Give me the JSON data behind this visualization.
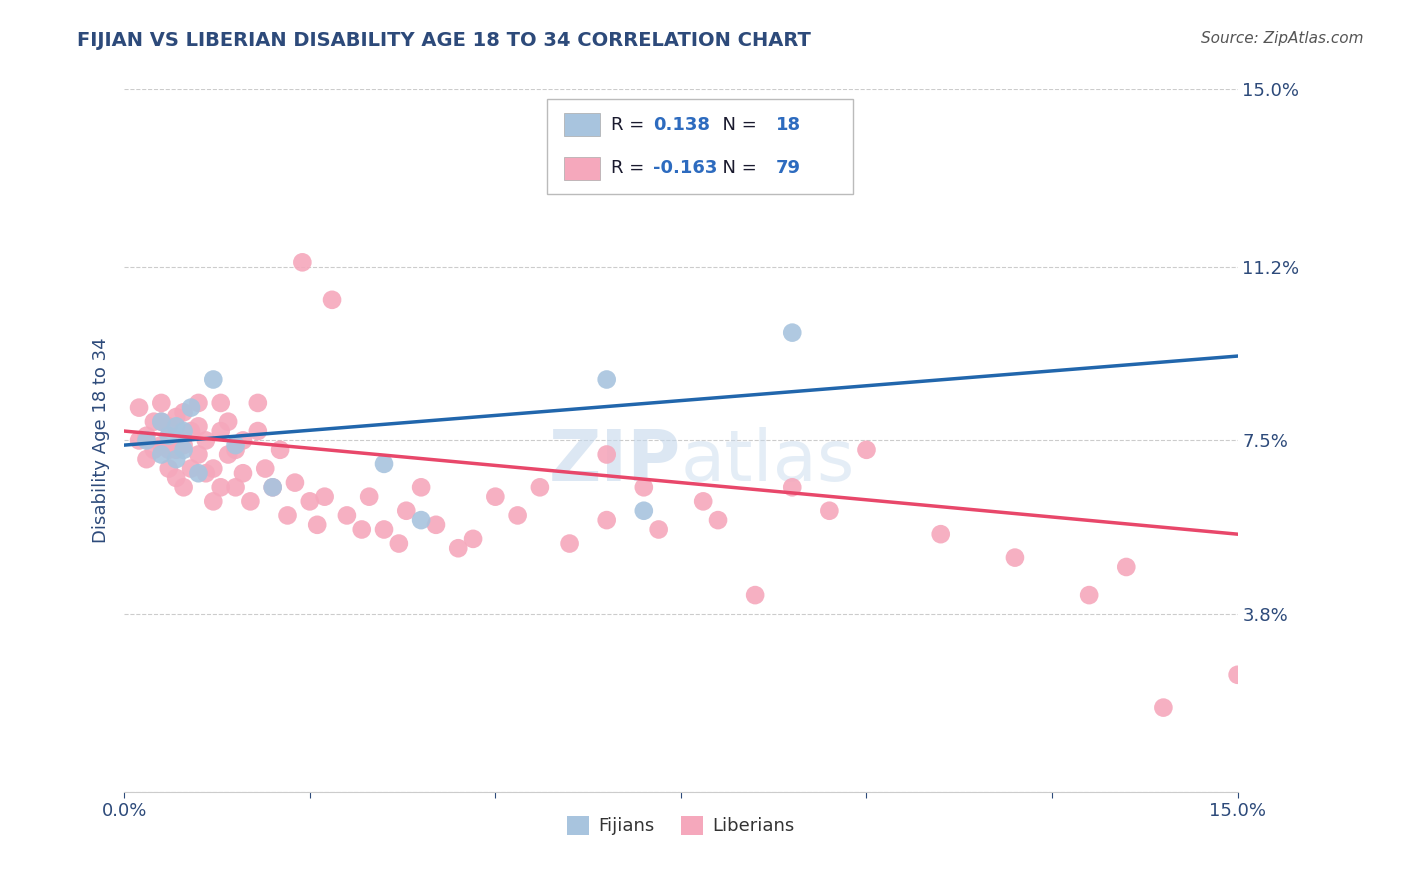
{
  "title": "FIJIAN VS LIBERIAN DISABILITY AGE 18 TO 34 CORRELATION CHART",
  "xlabel": "",
  "ylabel": "Disability Age 18 to 34",
  "source_text": "Source: ZipAtlas.com",
  "watermark_zip": "ZIP",
  "watermark_atlas": "atlas",
  "xlim": [
    0.0,
    0.15
  ],
  "ylim": [
    0.0,
    0.15
  ],
  "xtick_vals": [
    0.0,
    0.025,
    0.05,
    0.075,
    0.1,
    0.125,
    0.15
  ],
  "xtick_labels": [
    "0.0%",
    "",
    "",
    "",
    "",
    "",
    "15.0%"
  ],
  "ytick_vals": [
    0.0,
    0.038,
    0.075,
    0.112,
    0.15
  ],
  "ytick_labels": [
    "",
    "3.8%",
    "7.5%",
    "11.2%",
    "15.0%"
  ],
  "grid_color": "#cccccc",
  "background_color": "#ffffff",
  "title_color": "#2d4a7a",
  "axis_color": "#2d4a7a",
  "tick_color": "#2d4a7a",
  "fijian_color": "#a8c4de",
  "liberian_color": "#f5a8bc",
  "fijian_line_color": "#2166ac",
  "liberian_line_color": "#e8476a",
  "fijian_R": "0.138",
  "fijian_N": "18",
  "liberian_R": "-0.163",
  "liberian_N": "79",
  "legend_label_color": "#1a1a2e",
  "legend_value_color": "#2d6bbf",
  "fijian_x": [
    0.003,
    0.005,
    0.005,
    0.006,
    0.007,
    0.007,
    0.008,
    0.008,
    0.009,
    0.01,
    0.012,
    0.015,
    0.02,
    0.035,
    0.04,
    0.065,
    0.07,
    0.09
  ],
  "fijian_y": [
    0.075,
    0.072,
    0.079,
    0.076,
    0.071,
    0.078,
    0.073,
    0.077,
    0.082,
    0.068,
    0.088,
    0.074,
    0.065,
    0.07,
    0.058,
    0.088,
    0.06,
    0.098
  ],
  "liberian_x": [
    0.002,
    0.002,
    0.003,
    0.003,
    0.004,
    0.004,
    0.005,
    0.005,
    0.005,
    0.006,
    0.006,
    0.006,
    0.007,
    0.007,
    0.007,
    0.008,
    0.008,
    0.008,
    0.009,
    0.009,
    0.01,
    0.01,
    0.01,
    0.011,
    0.011,
    0.012,
    0.012,
    0.013,
    0.013,
    0.013,
    0.014,
    0.014,
    0.015,
    0.015,
    0.016,
    0.016,
    0.017,
    0.018,
    0.018,
    0.019,
    0.02,
    0.021,
    0.022,
    0.023,
    0.024,
    0.025,
    0.026,
    0.027,
    0.028,
    0.03,
    0.032,
    0.033,
    0.035,
    0.037,
    0.038,
    0.04,
    0.042,
    0.045,
    0.047,
    0.05,
    0.053,
    0.056,
    0.06,
    0.065,
    0.065,
    0.07,
    0.072,
    0.078,
    0.08,
    0.085,
    0.09,
    0.095,
    0.1,
    0.11,
    0.12,
    0.13,
    0.135,
    0.14,
    0.15
  ],
  "liberian_y": [
    0.075,
    0.082,
    0.076,
    0.071,
    0.079,
    0.073,
    0.074,
    0.079,
    0.083,
    0.069,
    0.073,
    0.078,
    0.067,
    0.073,
    0.08,
    0.065,
    0.074,
    0.081,
    0.069,
    0.077,
    0.072,
    0.078,
    0.083,
    0.068,
    0.075,
    0.062,
    0.069,
    0.077,
    0.065,
    0.083,
    0.072,
    0.079,
    0.065,
    0.073,
    0.068,
    0.075,
    0.062,
    0.077,
    0.083,
    0.069,
    0.065,
    0.073,
    0.059,
    0.066,
    0.113,
    0.062,
    0.057,
    0.063,
    0.105,
    0.059,
    0.056,
    0.063,
    0.056,
    0.053,
    0.06,
    0.065,
    0.057,
    0.052,
    0.054,
    0.063,
    0.059,
    0.065,
    0.053,
    0.072,
    0.058,
    0.065,
    0.056,
    0.062,
    0.058,
    0.042,
    0.065,
    0.06,
    0.073,
    0.055,
    0.05,
    0.042,
    0.048,
    0.018,
    0.025
  ],
  "fijian_trendline": [
    0.074,
    0.093
  ],
  "liberian_trendline": [
    0.077,
    0.055
  ]
}
